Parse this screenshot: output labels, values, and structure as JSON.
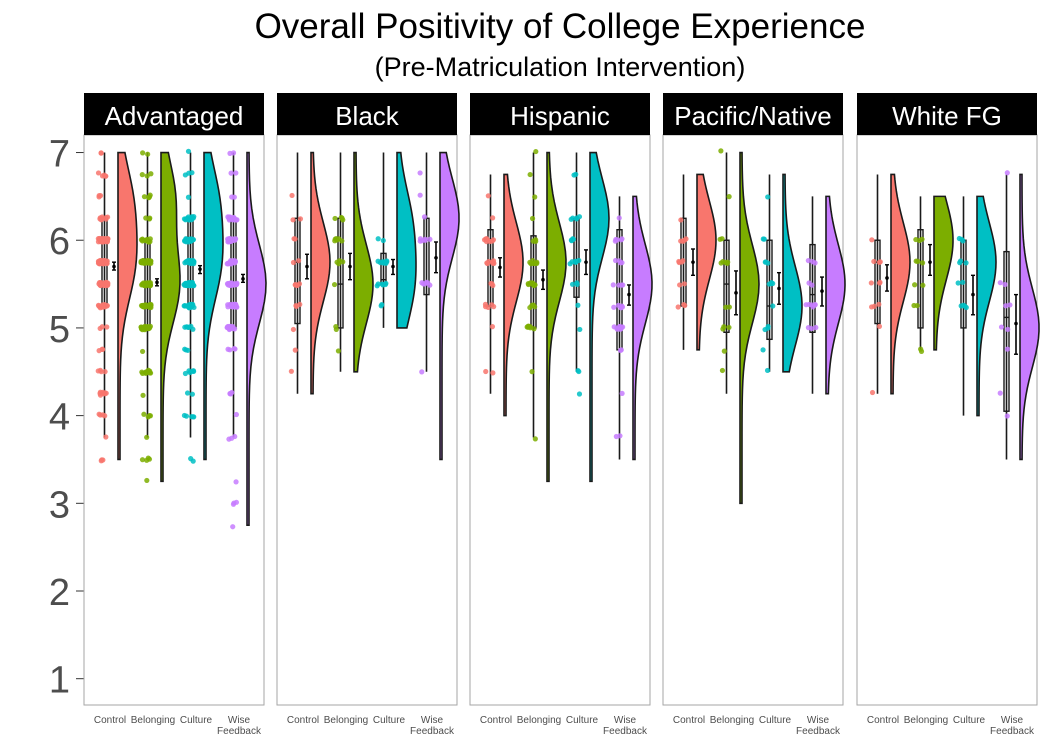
{
  "chart_data": {
    "type": "raincloud",
    "title": "Overall Positivity of College Experience",
    "subtitle": "(Pre-Matriculation Intervention)",
    "xlabel": "",
    "ylabel": "",
    "ylim": [
      0.7,
      7.2
    ],
    "y_ticks": [
      1,
      2,
      3,
      4,
      5,
      6,
      7
    ],
    "grid": false,
    "legend": "none",
    "conditions": [
      {
        "label": "Control",
        "color": "#F8766D"
      },
      {
        "label": "Belonging",
        "color": "#7CAE00"
      },
      {
        "label": "Culture",
        "color": "#00BFC4"
      },
      {
        "label": "Wise\nFeedback",
        "color": "#C77CFF"
      }
    ],
    "panels": [
      {
        "name": "Advantaged",
        "groups": [
          {
            "mean": 5.7,
            "se_low": 5.66,
            "se_high": 5.75,
            "q1": 5.25,
            "median": 5.75,
            "q3": 6.25,
            "whisker_low": 3.75,
            "whisker_high": 7.0,
            "min": 3.5,
            "max": 7.0,
            "density_peaks": [
              5.75,
              6.5
            ],
            "n_points": 160
          },
          {
            "mean": 5.52,
            "se_low": 5.48,
            "se_high": 5.56,
            "q1": 5.0,
            "median": 5.5,
            "q3": 6.0,
            "whisker_low": 3.75,
            "whisker_high": 7.0,
            "min": 3.25,
            "max": 7.0,
            "density_peaks": [
              5.5,
              6.5
            ],
            "n_points": 160
          },
          {
            "mean": 5.67,
            "se_low": 5.62,
            "se_high": 5.71,
            "q1": 5.25,
            "median": 5.75,
            "q3": 6.25,
            "whisker_low": 3.75,
            "whisker_high": 7.0,
            "min": 3.5,
            "max": 7.0,
            "density_peaks": [
              5.75,
              6.5
            ],
            "n_points": 160
          },
          {
            "mean": 5.56,
            "se_low": 5.52,
            "se_high": 5.61,
            "q1": 5.0,
            "median": 5.5,
            "q3": 6.25,
            "whisker_low": 3.75,
            "whisker_high": 7.0,
            "min": 2.75,
            "max": 7.0,
            "density_peaks": [
              5.5
            ],
            "n_points": 140
          }
        ]
      },
      {
        "name": "Black",
        "groups": [
          {
            "mean": 5.7,
            "se_low": 5.56,
            "se_high": 5.84,
            "q1": 5.05,
            "median": 5.75,
            "q3": 6.25,
            "whisker_low": 4.25,
            "whisker_high": 7.0,
            "min": 4.25,
            "max": 7.0,
            "density_peaks": [
              5.75
            ],
            "n_points": 18
          },
          {
            "mean": 5.7,
            "se_low": 5.55,
            "se_high": 5.85,
            "q1": 5.0,
            "median": 5.5,
            "q3": 6.25,
            "whisker_low": 4.5,
            "whisker_high": 7.0,
            "min": 4.5,
            "max": 7.0,
            "density_peaks": [
              5.5
            ],
            "n_points": 18
          },
          {
            "mean": 5.7,
            "se_low": 5.61,
            "se_high": 5.78,
            "q1": 5.5,
            "median": 5.55,
            "q3": 5.85,
            "whisker_low": 5.0,
            "whisker_high": 7.0,
            "min": 5.0,
            "max": 7.0,
            "density_peaks": [
              5.5,
              6.25
            ],
            "n_points": 20
          },
          {
            "mean": 5.8,
            "se_low": 5.63,
            "se_high": 5.98,
            "q1": 5.38,
            "median": 6.0,
            "q3": 6.25,
            "whisker_low": 4.5,
            "whisker_high": 7.0,
            "min": 3.5,
            "max": 7.0,
            "density_peaks": [
              6.25
            ],
            "n_points": 16
          }
        ]
      },
      {
        "name": "Hispanic",
        "groups": [
          {
            "mean": 5.69,
            "se_low": 5.58,
            "se_high": 5.8,
            "q1": 5.25,
            "median": 5.75,
            "q3": 6.12,
            "whisker_low": 4.25,
            "whisker_high": 6.75,
            "min": 4.0,
            "max": 6.75,
            "density_peaks": [
              5.75
            ],
            "n_points": 30
          },
          {
            "mean": 5.55,
            "se_low": 5.44,
            "se_high": 5.66,
            "q1": 5.0,
            "median": 5.75,
            "q3": 6.05,
            "whisker_low": 3.75,
            "whisker_high": 7.0,
            "min": 3.25,
            "max": 7.0,
            "density_peaks": [
              5.75
            ],
            "n_points": 36
          },
          {
            "mean": 5.75,
            "se_low": 5.61,
            "se_high": 5.89,
            "q1": 5.35,
            "median": 6.25,
            "q3": 6.25,
            "whisker_low": 4.5,
            "whisker_high": 7.0,
            "min": 3.25,
            "max": 7.0,
            "density_peaks": [
              6.25
            ],
            "n_points": 26
          },
          {
            "mean": 5.38,
            "se_low": 5.26,
            "se_high": 5.49,
            "q1": 4.75,
            "median": 5.5,
            "q3": 6.12,
            "whisker_low": 3.5,
            "whisker_high": 6.5,
            "min": 3.5,
            "max": 6.5,
            "density_peaks": [
              5.5
            ],
            "n_points": 34
          }
        ]
      },
      {
        "name": "Pacific/Native",
        "groups": [
          {
            "mean": 5.75,
            "se_low": 5.6,
            "se_high": 5.9,
            "q1": 5.25,
            "median": 6.0,
            "q3": 6.25,
            "whisker_low": 4.75,
            "whisker_high": 6.75,
            "min": 4.75,
            "max": 6.75,
            "density_peaks": [
              6.0
            ],
            "n_points": 14
          },
          {
            "mean": 5.4,
            "se_low": 5.15,
            "se_high": 5.65,
            "q1": 4.95,
            "median": 5.5,
            "q3": 6.0,
            "whisker_low": 4.25,
            "whisker_high": 7.0,
            "min": 3.0,
            "max": 7.0,
            "density_peaks": [
              5.5
            ],
            "n_points": 16
          },
          {
            "mean": 5.45,
            "se_low": 5.27,
            "se_high": 5.63,
            "q1": 4.87,
            "median": 5.25,
            "q3": 6.0,
            "whisker_low": 4.5,
            "whisker_high": 6.75,
            "min": 4.5,
            "max": 6.75,
            "density_peaks": [
              5.25
            ],
            "n_points": 16
          },
          {
            "mean": 5.42,
            "se_low": 5.25,
            "se_high": 5.58,
            "q1": 4.95,
            "median": 5.38,
            "q3": 5.95,
            "whisker_low": 4.25,
            "whisker_high": 6.5,
            "min": 4.25,
            "max": 6.5,
            "density_peaks": [
              5.5
            ],
            "n_points": 14
          }
        ]
      },
      {
        "name": "White FG",
        "groups": [
          {
            "mean": 5.57,
            "se_low": 5.42,
            "se_high": 5.72,
            "q1": 5.05,
            "median": 5.75,
            "q3": 6.0,
            "whisker_low": 4.25,
            "whisker_high": 6.75,
            "min": 4.25,
            "max": 6.75,
            "density_peaks": [
              5.75
            ],
            "n_points": 12
          },
          {
            "mean": 5.75,
            "se_low": 5.6,
            "se_high": 5.95,
            "q1": 5.0,
            "median": 6.0,
            "q3": 6.12,
            "whisker_low": 4.75,
            "whisker_high": 6.5,
            "min": 4.75,
            "max": 6.5,
            "density_peaks": [
              6.0
            ],
            "n_points": 12
          },
          {
            "mean": 5.38,
            "se_low": 5.15,
            "se_high": 5.6,
            "q1": 5.0,
            "median": 5.75,
            "q3": 6.0,
            "whisker_low": 4.0,
            "whisker_high": 6.5,
            "min": 4.0,
            "max": 6.5,
            "density_peaks": [
              5.75
            ],
            "n_points": 12
          },
          {
            "mean": 5.05,
            "se_low": 4.7,
            "se_high": 5.38,
            "q1": 4.05,
            "median": 5.12,
            "q3": 5.87,
            "whisker_low": 3.5,
            "whisker_high": 6.75,
            "min": 3.5,
            "max": 6.75,
            "density_peaks": [
              5.0
            ],
            "n_points": 10
          }
        ]
      }
    ]
  }
}
